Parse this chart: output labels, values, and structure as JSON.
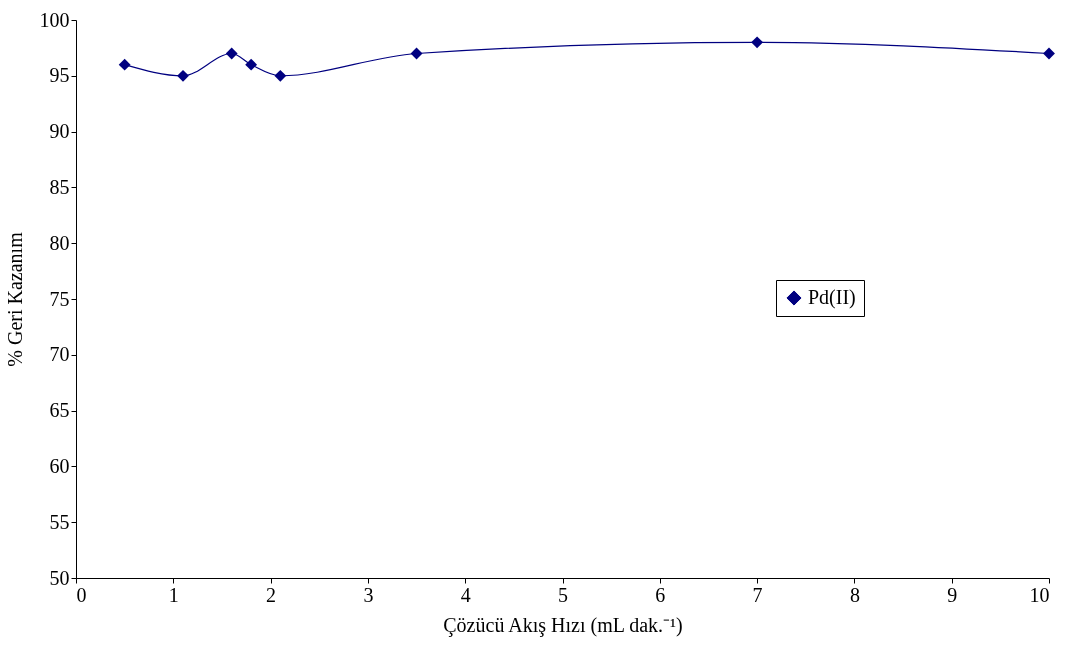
{
  "chart_data": {
    "type": "line",
    "xlabel": "Çözücü Akış Hızı (mL dak.⁻¹)",
    "ylabel": "% Geri Kazanım",
    "x": [
      0.5,
      1.1,
      1.6,
      1.8,
      2.1,
      3.5,
      7,
      10
    ],
    "series": [
      {
        "name": "Pd(II)",
        "color": "#000080",
        "values": [
          96,
          95,
          97,
          96,
          95,
          97,
          98,
          97
        ]
      }
    ],
    "xlim": [
      0,
      10
    ],
    "xticks": [
      0,
      1,
      2,
      3,
      4,
      5,
      6,
      7,
      8,
      9,
      10
    ],
    "ylim": [
      50,
      100
    ],
    "yticks": [
      50,
      55,
      60,
      65,
      70,
      75,
      80,
      85,
      90,
      95,
      100
    ],
    "marker": "diamond",
    "line_style": "solid",
    "legend": "right",
    "grid": false
  }
}
